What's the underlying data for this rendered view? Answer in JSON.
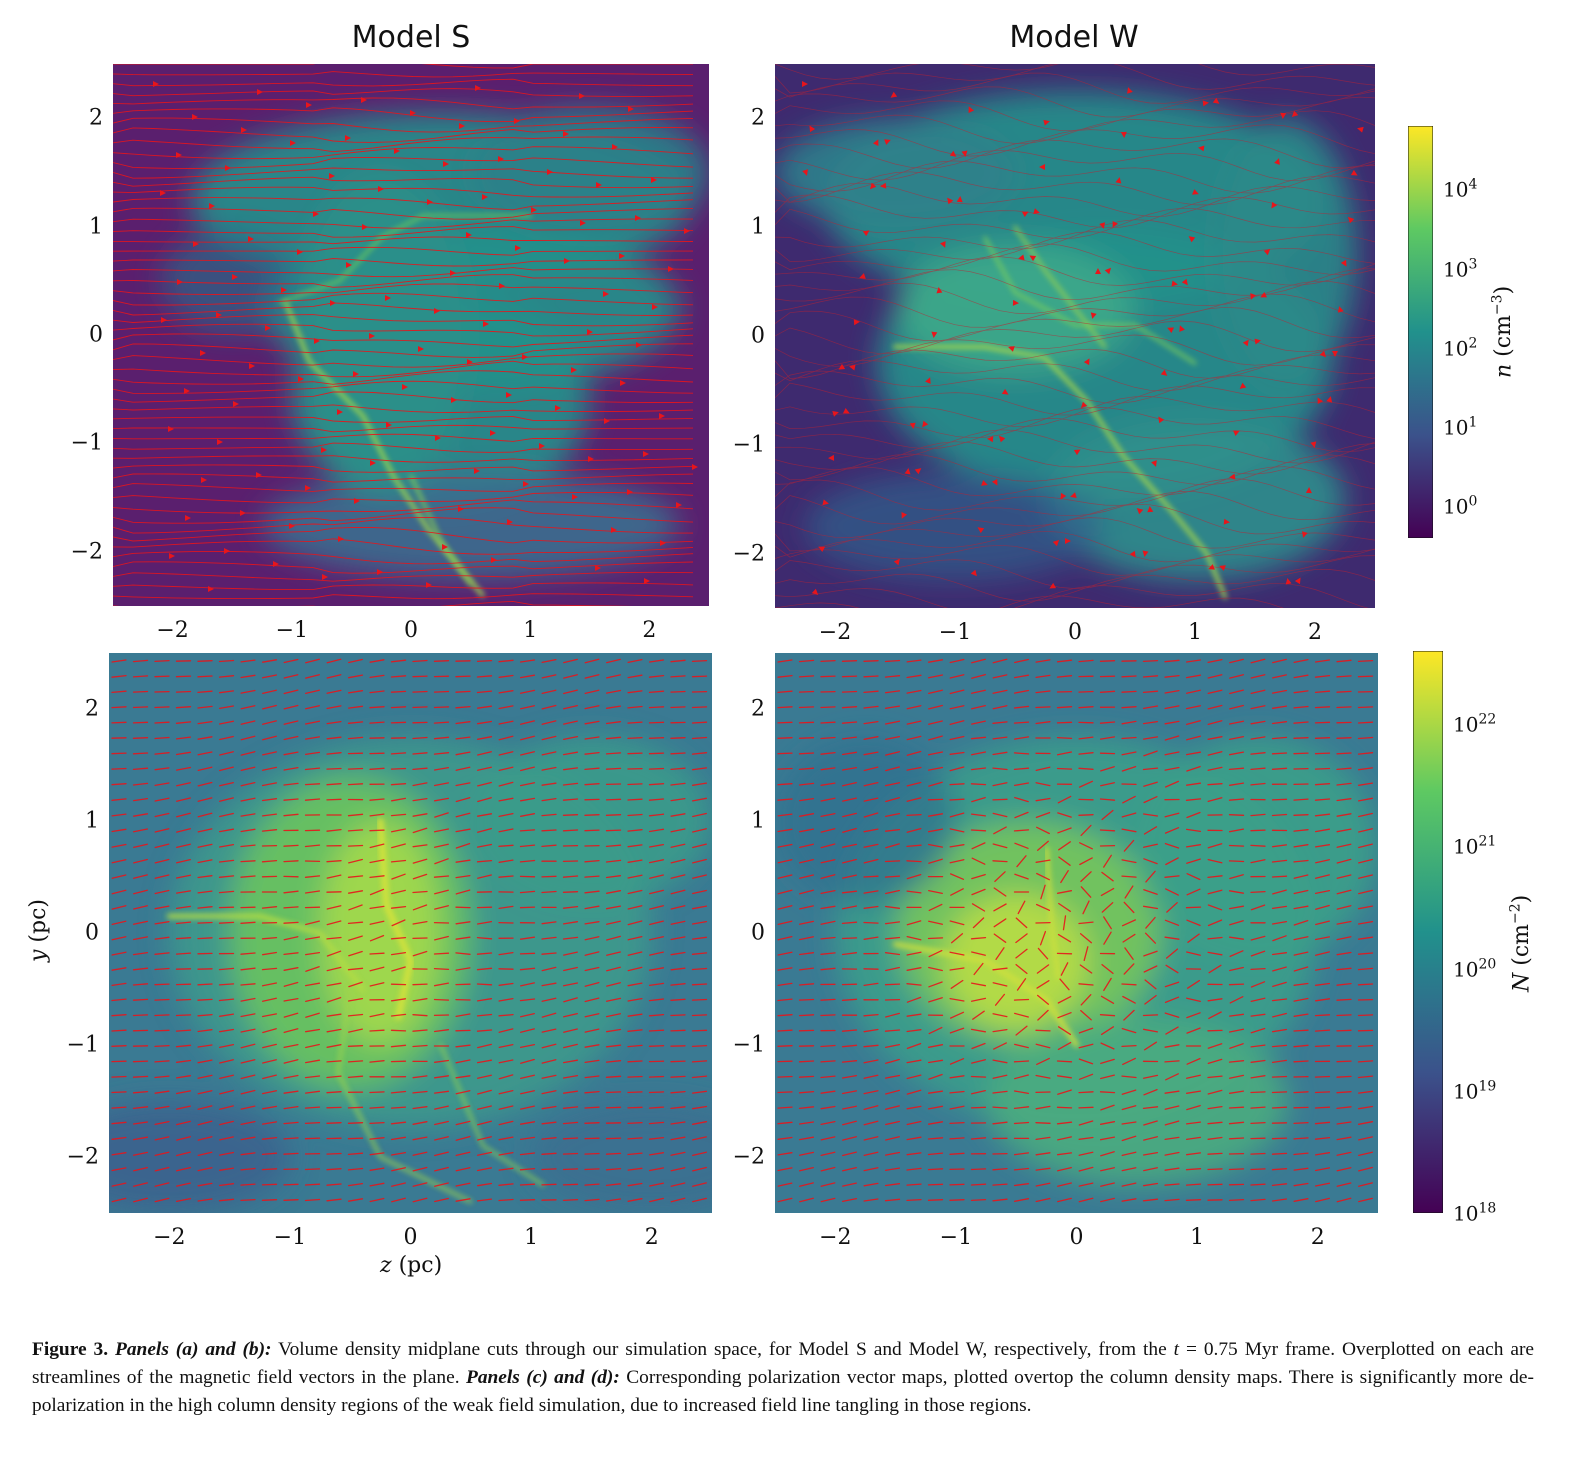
{
  "titles": {
    "left": "Model S",
    "right": "Model W"
  },
  "axes": {
    "x_ticks": [
      "−2",
      "−1",
      "0",
      "1",
      "2"
    ],
    "y_ticks": [
      "2",
      "1",
      "0",
      "−1",
      "−2"
    ],
    "x_values": [
      -2,
      -1,
      0,
      1,
      2
    ],
    "y_values": [
      2,
      1,
      0,
      -1,
      -2
    ],
    "xlim": [
      -2.5,
      2.5
    ],
    "ylim": [
      -2.5,
      2.5
    ],
    "xlabel_var": "z",
    "xlabel_unit": " (pc)",
    "ylabel_var": "y",
    "ylabel_unit": " (pc)"
  },
  "colorbars": {
    "top": {
      "label_var": "n",
      "label_unit_open": " (cm",
      "label_exp": "−3",
      "label_close": ")",
      "ticks": [
        {
          "base": "10",
          "exp": "4",
          "log": 4
        },
        {
          "base": "10",
          "exp": "3",
          "log": 3
        },
        {
          "base": "10",
          "exp": "2",
          "log": 2
        },
        {
          "base": "10",
          "exp": "1",
          "log": 1
        },
        {
          "base": "10",
          "exp": "0",
          "log": 0
        }
      ],
      "range_log": [
        -0.4,
        4.8
      ]
    },
    "bottom": {
      "label_var": "N",
      "label_unit_open": " (cm",
      "label_exp": "−2",
      "label_close": ")",
      "ticks": [
        {
          "base": "10",
          "exp": "22",
          "log": 22
        },
        {
          "base": "10",
          "exp": "21",
          "log": 21
        },
        {
          "base": "10",
          "exp": "20",
          "log": 20
        },
        {
          "base": "10",
          "exp": "19",
          "log": 19
        },
        {
          "base": "10",
          "exp": "18",
          "log": 18
        }
      ],
      "range_log": [
        18,
        22.6
      ]
    }
  },
  "colors": {
    "viridis": [
      "#440154",
      "#3b528b",
      "#21918c",
      "#5ec962",
      "#fde725"
    ],
    "vector": "#e8151b"
  },
  "caption": {
    "fig": "Figure 3.",
    "p1": " Panels (a) and (b):",
    "t1": " Volume density midplane cuts through our simulation space, for Model S and Model W, respectively, from the ",
    "tvar": "t",
    "t2": " = 0.75 Myr frame. Overplotted on each are streamlines of the magnetic field vectors in the plane. ",
    "p2": "Panels (c) and (d):",
    "t3": " Corresponding polarization vector maps, plotted overtop the column density maps. There is significantly more de-polarization in the high column density regions of the weak field simulation, due to increased field line tangling in those regions."
  }
}
